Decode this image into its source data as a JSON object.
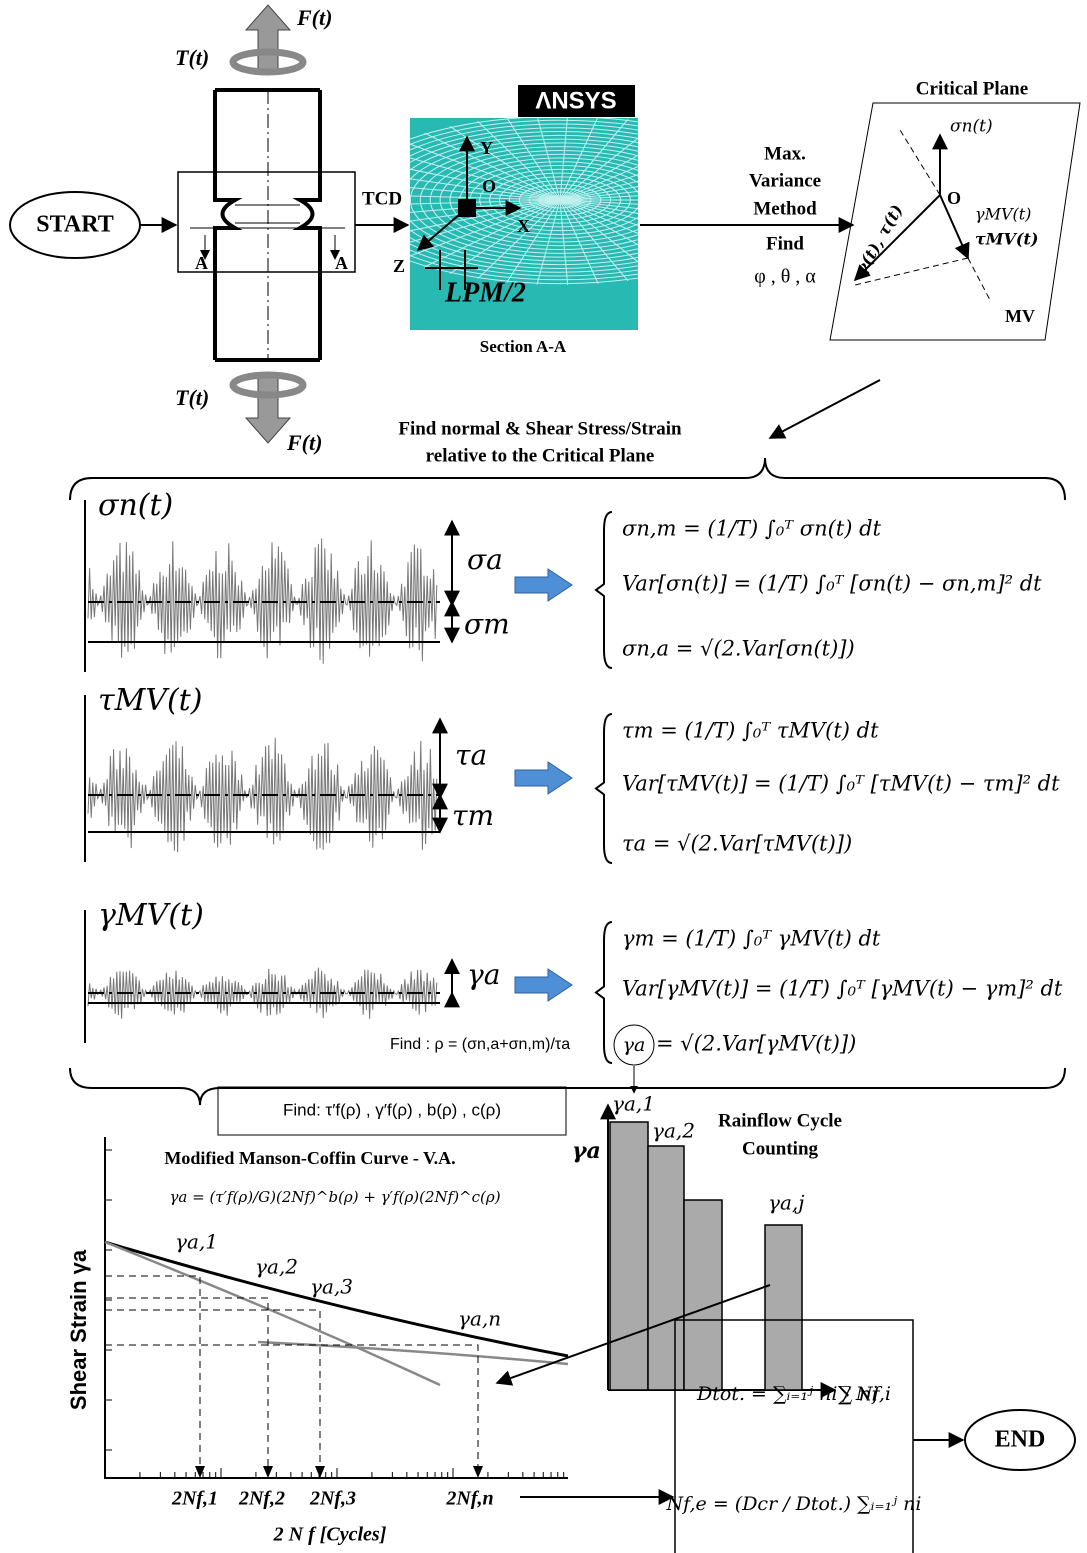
{
  "start": "START",
  "end": "END",
  "specimen": {
    "force_top": "F(t)",
    "torque_top": "T(t)",
    "torque_bottom": "T(t)",
    "force_bottom": "F(t)",
    "section_left": "A",
    "section_right": "A",
    "tcd": "TCD"
  },
  "ansys": {
    "logo": "ΛNSYS",
    "axis_y": "Y",
    "origin": "O",
    "axis_x": "X",
    "axis_z": "Z",
    "length": "LPM/2",
    "caption": "Section A-A"
  },
  "method": {
    "line1": "Max.",
    "line2": "Variance",
    "line3": "Method",
    "find": "Find",
    "angles": "φ , θ , α"
  },
  "critical_plane": {
    "title": "Critical Plane",
    "normal": "σn(t)",
    "origin": "O",
    "gamma_mv": "γMV(t)",
    "tau_mv": "τMV(t)",
    "gamma_tau": "γ(t), τ(t)",
    "mv": "MV"
  },
  "heading": {
    "line1": "Find normal & Shear Stress/Strain",
    "line2": "relative to the Critical Plane"
  },
  "signals": [
    {
      "label": "σn(t)",
      "amplitude": "σa",
      "mean": "σm"
    },
    {
      "label": "τMV(t)",
      "amplitude": "τa",
      "mean": "τm"
    },
    {
      "label": "γMV(t)",
      "amplitude": "γa"
    }
  ],
  "equations": [
    [
      "σn,m = (1/T) ∫₀ᵀ σn(t) dt",
      "Var[σn(t)] = (1/T) ∫₀ᵀ [σn(t) − σn,m]² dt",
      "σn,a = √(2.Var[σn(t)])"
    ],
    [
      "τm = (1/T) ∫₀ᵀ τMV(t) dt",
      "Var[τMV(t)] = (1/T) ∫₀ᵀ [τMV(t) − τm]² dt",
      "τa = √(2.Var[τMV(t)])"
    ],
    [
      "γm = (1/T) ∫₀ᵀ γMV(t) dt",
      "Var[γMV(t)] = (1/T) ∫₀ᵀ [γMV(t) − γm]² dt",
      "= √(2.Var[γMV(t)])"
    ]
  ],
  "gamma_circle": "γa",
  "rho_find": "Find : ρ = (σn,a+σn,m)/τa",
  "curve_find": "Find: τ′f(ρ) , γ′f(ρ) , b(ρ) , c(ρ)",
  "curve": {
    "title": "Modified Manson-Coffin Curve - V.A.",
    "formula": "γa = (τ′f(ρ)/G)(2Nf)^b(ρ) + γ′f(ρ)(2Nf)^c(ρ)",
    "y_label": "Shear Strain γa",
    "points": [
      "γa,1",
      "γa,2",
      "γa,3",
      "γa,n"
    ],
    "lives": [
      "2Nf,1",
      "2Nf,2",
      "2Nf,3",
      "2Nf,n"
    ],
    "x_label": "2 N f [Cycles]"
  },
  "rainflow": {
    "title1": "Rainflow Cycle",
    "title2": "Counting",
    "y_label": "γa",
    "bars": [
      "γa,1",
      "γa,2",
      "γa,j"
    ],
    "x_label": "∑ ni"
  },
  "damage": {
    "total": "Dtot. = ∑ᵢ₌₁ʲ ni / Nf,i",
    "life": "Nf,e = (Dcr / Dtot.) ∑ᵢ₌₁ʲ ni"
  }
}
